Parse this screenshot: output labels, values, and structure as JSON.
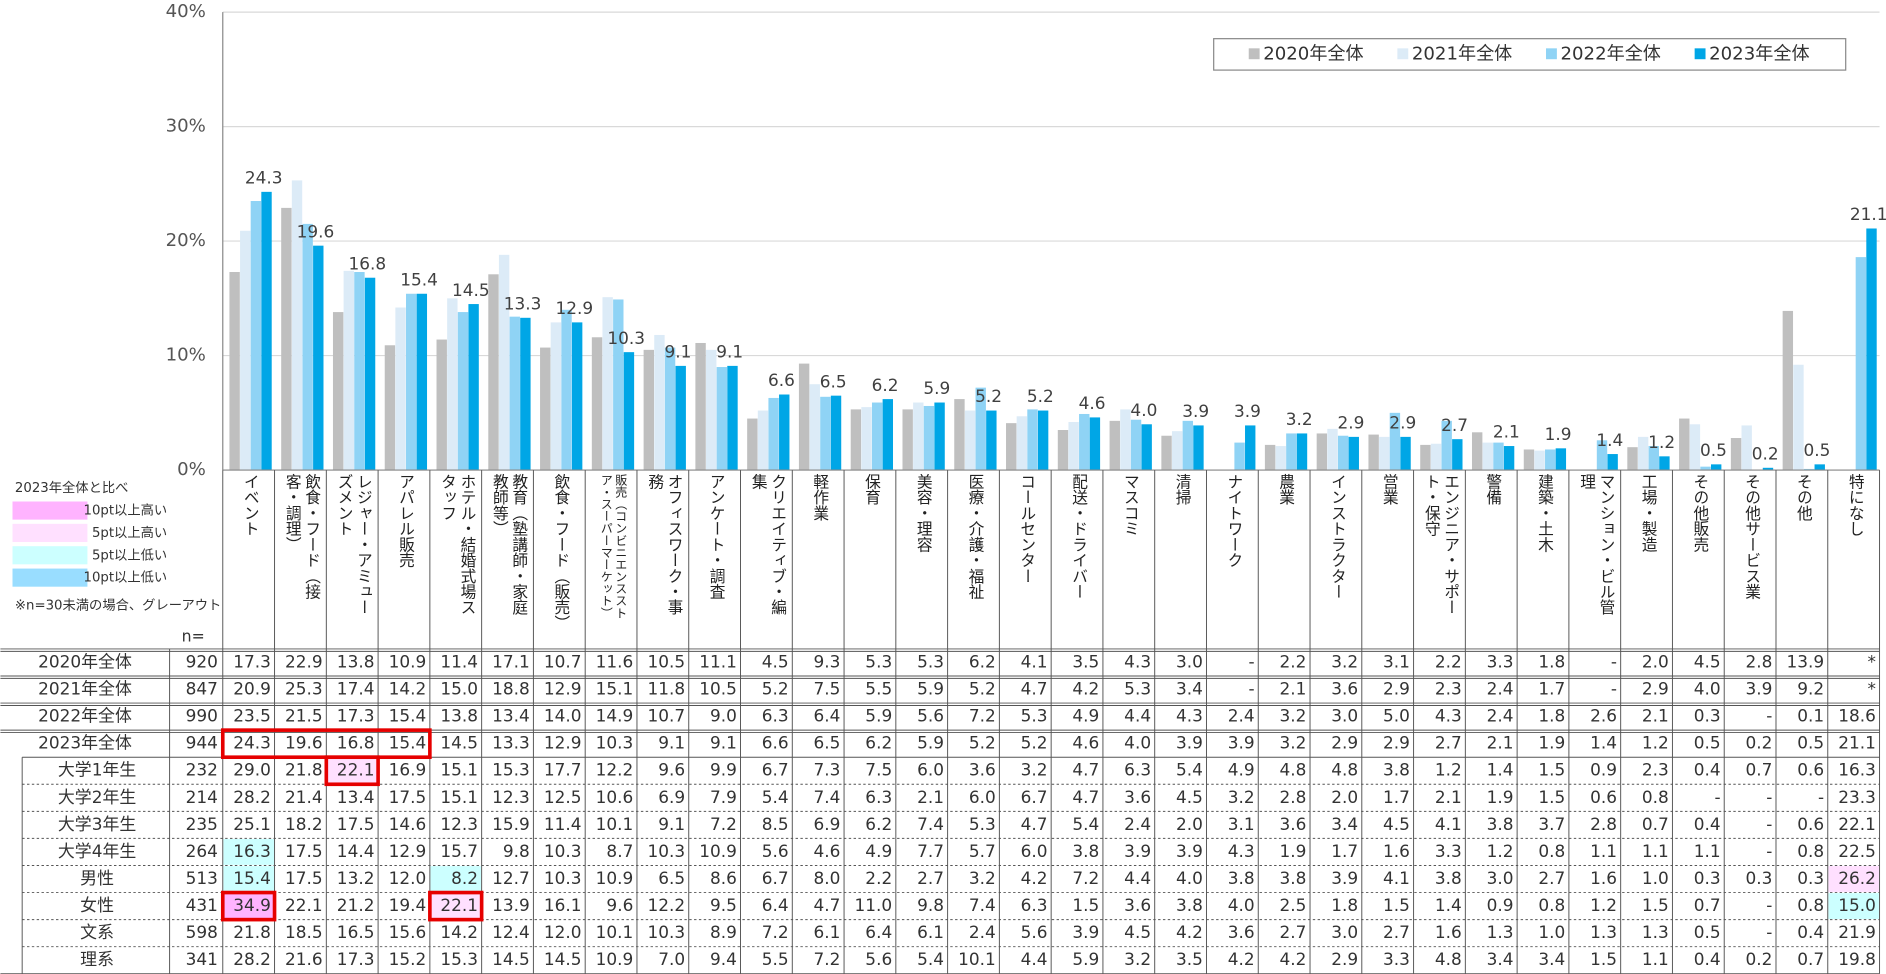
{
  "chart_data": {
    "type": "bar",
    "categories": [
      "イベント",
      "飲食・フード（接客・調理）",
      "レジャー・アミューズメント",
      "アパレル販売",
      "ホテル・結婚式場スタッフ",
      "教育（塾講師・家庭教師等）",
      "飲食・フード（販売）",
      "販売（コンビニエンスストア・スーパーマーケット）",
      "オフィスワーク・事務",
      "アンケート・調査",
      "クリエイティブ・編集",
      "軽作業",
      "保育",
      "美容・理容",
      "医療・介護・福祉",
      "コールセンター",
      "配送・ドライバー",
      "マスコミ",
      "清掃",
      "ナイトワーク",
      "農業",
      "インストラクター",
      "営業",
      "エンジニア・サポート・保守",
      "警備",
      "建築・土木",
      "マンション・ビル管理",
      "工場・製造",
      "その他販売",
      "その他サービス業",
      "その他",
      "特になし"
    ],
    "ylim": [
      0,
      40
    ],
    "yticks": [
      {
        "value": 0,
        "label": "0%"
      },
      {
        "value": 10,
        "label": "10%"
      },
      {
        "value": 20,
        "label": "20%"
      },
      {
        "value": 30,
        "label": "30%"
      },
      {
        "value": 40,
        "label": "40%"
      }
    ],
    "grid": true,
    "legend": "top-right",
    "series": [
      {
        "name": "2020年全体",
        "color": "#bfbfbf",
        "n": 920,
        "values": [
          17.3,
          22.9,
          13.8,
          10.9,
          11.4,
          17.1,
          10.7,
          11.6,
          10.5,
          11.1,
          4.5,
          9.3,
          5.3,
          5.3,
          6.2,
          4.1,
          3.5,
          4.3,
          3.0,
          null,
          2.2,
          3.2,
          3.1,
          2.2,
          3.3,
          1.8,
          null,
          2.0,
          4.5,
          2.8,
          13.9,
          null
        ],
        "value_labels": [
          "17.3",
          "22.9",
          "13.8",
          "10.9",
          "11.4",
          "17.1",
          "10.7",
          "11.6",
          "10.5",
          "11.1",
          "4.5",
          "9.3",
          "5.3",
          "5.3",
          "6.2",
          "4.1",
          "3.5",
          "4.3",
          "3.0",
          "-",
          "2.2",
          "3.2",
          "3.1",
          "2.2",
          "3.3",
          "1.8",
          "-",
          "2.0",
          "4.5",
          "2.8",
          "13.9",
          "*"
        ]
      },
      {
        "name": "2021年全体",
        "color": "#dcebf7",
        "n": 847,
        "values": [
          20.9,
          25.3,
          17.4,
          14.2,
          15.0,
          18.8,
          12.9,
          15.1,
          11.8,
          10.5,
          5.2,
          7.5,
          5.5,
          5.9,
          5.2,
          4.7,
          4.2,
          5.3,
          3.4,
          null,
          2.1,
          3.6,
          2.9,
          2.3,
          2.4,
          1.7,
          null,
          2.9,
          4.0,
          3.9,
          9.2,
          null
        ],
        "value_labels": [
          "20.9",
          "25.3",
          "17.4",
          "14.2",
          "15.0",
          "18.8",
          "12.9",
          "15.1",
          "11.8",
          "10.5",
          "5.2",
          "7.5",
          "5.5",
          "5.9",
          "5.2",
          "4.7",
          "4.2",
          "5.3",
          "3.4",
          "-",
          "2.1",
          "3.6",
          "2.9",
          "2.3",
          "2.4",
          "1.7",
          "-",
          "2.9",
          "4.0",
          "3.9",
          "9.2",
          "*"
        ]
      },
      {
        "name": "2022年全体",
        "color": "#8fd3f5",
        "n": 990,
        "values": [
          23.5,
          21.5,
          17.3,
          15.4,
          13.8,
          13.4,
          14.0,
          14.9,
          10.7,
          9.0,
          6.3,
          6.4,
          5.9,
          5.6,
          7.2,
          5.3,
          4.9,
          4.4,
          4.3,
          2.4,
          3.2,
          3.0,
          5.0,
          4.3,
          2.4,
          1.8,
          2.6,
          2.1,
          0.3,
          null,
          0.1,
          18.6
        ],
        "value_labels": [
          "23.5",
          "21.5",
          "17.3",
          "15.4",
          "13.8",
          "13.4",
          "14.0",
          "14.9",
          "10.7",
          "9.0",
          "6.3",
          "6.4",
          "5.9",
          "5.6",
          "7.2",
          "5.3",
          "4.9",
          "4.4",
          "4.3",
          "2.4",
          "3.2",
          "3.0",
          "5.0",
          "4.3",
          "2.4",
          "1.8",
          "2.6",
          "2.1",
          "0.3",
          "-",
          "0.1",
          "18.6"
        ]
      },
      {
        "name": "2023年全体",
        "color": "#00a6e6",
        "n": 944,
        "values": [
          24.3,
          19.6,
          16.8,
          15.4,
          14.5,
          13.3,
          12.9,
          10.3,
          9.1,
          9.1,
          6.6,
          6.5,
          6.2,
          5.9,
          5.2,
          5.2,
          4.6,
          4.0,
          3.9,
          3.9,
          3.2,
          2.9,
          2.9,
          2.7,
          2.1,
          1.9,
          1.4,
          1.2,
          0.5,
          0.2,
          0.5,
          21.1
        ],
        "value_labels": [
          "24.3",
          "19.6",
          "16.8",
          "15.4",
          "14.5",
          "13.3",
          "12.9",
          "10.3",
          "9.1",
          "9.1",
          "6.6",
          "6.5",
          "6.2",
          "5.9",
          "5.2",
          "5.2",
          "4.6",
          "4.0",
          "3.9",
          "3.9",
          "3.2",
          "2.9",
          "2.9",
          "2.7",
          "2.1",
          "1.9",
          "1.4",
          "1.2",
          "0.5",
          "0.2",
          "0.5",
          "21.1"
        ]
      }
    ]
  },
  "table": {
    "n_header": "n=",
    "rows": [
      {
        "label": "大学1年生",
        "n": 232,
        "cells": [
          "29.0",
          "21.8",
          "22.1",
          "16.9",
          "15.1",
          "15.3",
          "17.7",
          "12.2",
          "9.6",
          "9.9",
          "6.7",
          "7.3",
          "7.5",
          "6.0",
          "3.6",
          "3.2",
          "4.7",
          "6.3",
          "5.4",
          "4.9",
          "4.8",
          "4.8",
          "3.8",
          "1.2",
          "1.4",
          "1.5",
          "0.9",
          "2.3",
          "0.4",
          "0.7",
          "0.6",
          "16.3"
        ]
      },
      {
        "label": "大学2年生",
        "n": 214,
        "cells": [
          "28.2",
          "21.4",
          "13.4",
          "17.5",
          "15.1",
          "12.3",
          "12.5",
          "10.6",
          "6.9",
          "7.9",
          "5.4",
          "7.4",
          "6.3",
          "2.1",
          "6.0",
          "6.7",
          "4.7",
          "3.6",
          "4.5",
          "3.2",
          "2.8",
          "2.0",
          "1.7",
          "2.1",
          "1.9",
          "1.5",
          "0.6",
          "0.8",
          "-",
          "-",
          "-",
          "23.3"
        ]
      },
      {
        "label": "大学3年生",
        "n": 235,
        "cells": [
          "25.1",
          "18.2",
          "17.5",
          "14.6",
          "12.3",
          "15.9",
          "11.4",
          "10.1",
          "9.1",
          "7.2",
          "8.5",
          "6.9",
          "6.2",
          "7.4",
          "5.3",
          "4.7",
          "5.4",
          "2.4",
          "2.0",
          "3.1",
          "3.6",
          "3.4",
          "4.5",
          "4.1",
          "3.8",
          "3.7",
          "2.8",
          "0.7",
          "0.4",
          "-",
          "0.6",
          "22.1"
        ]
      },
      {
        "label": "大学4年生",
        "n": 264,
        "cells": [
          "16.3",
          "17.5",
          "14.4",
          "12.9",
          "15.7",
          "9.8",
          "10.3",
          "8.7",
          "10.3",
          "10.9",
          "5.6",
          "4.6",
          "4.9",
          "7.7",
          "5.7",
          "6.0",
          "3.8",
          "3.9",
          "3.9",
          "4.3",
          "1.9",
          "1.7",
          "1.6",
          "3.3",
          "1.2",
          "0.8",
          "1.1",
          "1.1",
          "1.1",
          "-",
          "0.8",
          "22.5"
        ]
      },
      {
        "label": "男性",
        "n": 513,
        "cells": [
          "15.4",
          "17.5",
          "13.2",
          "12.0",
          "8.2",
          "12.7",
          "10.3",
          "10.9",
          "6.5",
          "8.6",
          "6.7",
          "8.0",
          "2.2",
          "2.7",
          "3.2",
          "4.2",
          "7.2",
          "4.4",
          "4.0",
          "3.8",
          "3.8",
          "3.9",
          "4.1",
          "3.8",
          "3.0",
          "2.7",
          "1.6",
          "1.0",
          "0.3",
          "0.3",
          "0.3",
          "26.2"
        ]
      },
      {
        "label": "女性",
        "n": 431,
        "cells": [
          "34.9",
          "22.1",
          "21.2",
          "19.4",
          "22.1",
          "13.9",
          "16.1",
          "9.6",
          "12.2",
          "9.5",
          "6.4",
          "4.7",
          "11.0",
          "9.8",
          "7.4",
          "6.3",
          "1.5",
          "3.6",
          "3.8",
          "4.0",
          "2.5",
          "1.8",
          "1.5",
          "1.4",
          "0.9",
          "0.8",
          "1.2",
          "1.5",
          "0.7",
          "-",
          "0.8",
          "15.0"
        ]
      },
      {
        "label": "文系",
        "n": 598,
        "cells": [
          "21.8",
          "18.5",
          "16.5",
          "15.6",
          "14.2",
          "12.4",
          "12.0",
          "10.1",
          "10.3",
          "8.9",
          "7.2",
          "6.1",
          "6.4",
          "6.1",
          "2.4",
          "5.6",
          "3.9",
          "4.5",
          "4.2",
          "3.6",
          "2.7",
          "3.0",
          "2.7",
          "1.6",
          "1.3",
          "1.0",
          "1.3",
          "1.3",
          "0.5",
          "-",
          "0.4",
          "21.9"
        ]
      },
      {
        "label": "理系",
        "n": 341,
        "cells": [
          "28.2",
          "21.6",
          "17.3",
          "15.2",
          "15.3",
          "14.5",
          "14.5",
          "10.9",
          "7.0",
          "9.4",
          "5.5",
          "7.2",
          "5.6",
          "5.4",
          "10.1",
          "4.4",
          "5.9",
          "3.2",
          "3.5",
          "4.2",
          "4.2",
          "2.9",
          "3.3",
          "4.8",
          "3.4",
          "3.4",
          "1.5",
          "1.1",
          "0.4",
          "0.2",
          "0.7",
          "19.8"
        ]
      }
    ]
  },
  "highlight_legend": {
    "title": "2023年全体と比べ",
    "levels": [
      {
        "label": "10pt以上高い",
        "color": "#ffb3ff",
        "threshold": 10
      },
      {
        "label": "5pt以上高い",
        "color": "#ffe0ff",
        "threshold": 5
      },
      {
        "label": "5pt以上低い",
        "color": "#ccffff",
        "threshold": -5
      },
      {
        "label": "10pt以上低い",
        "color": "#99ddff",
        "threshold": -10
      }
    ],
    "note": "※n=30未満の場合、グレーアウト"
  }
}
